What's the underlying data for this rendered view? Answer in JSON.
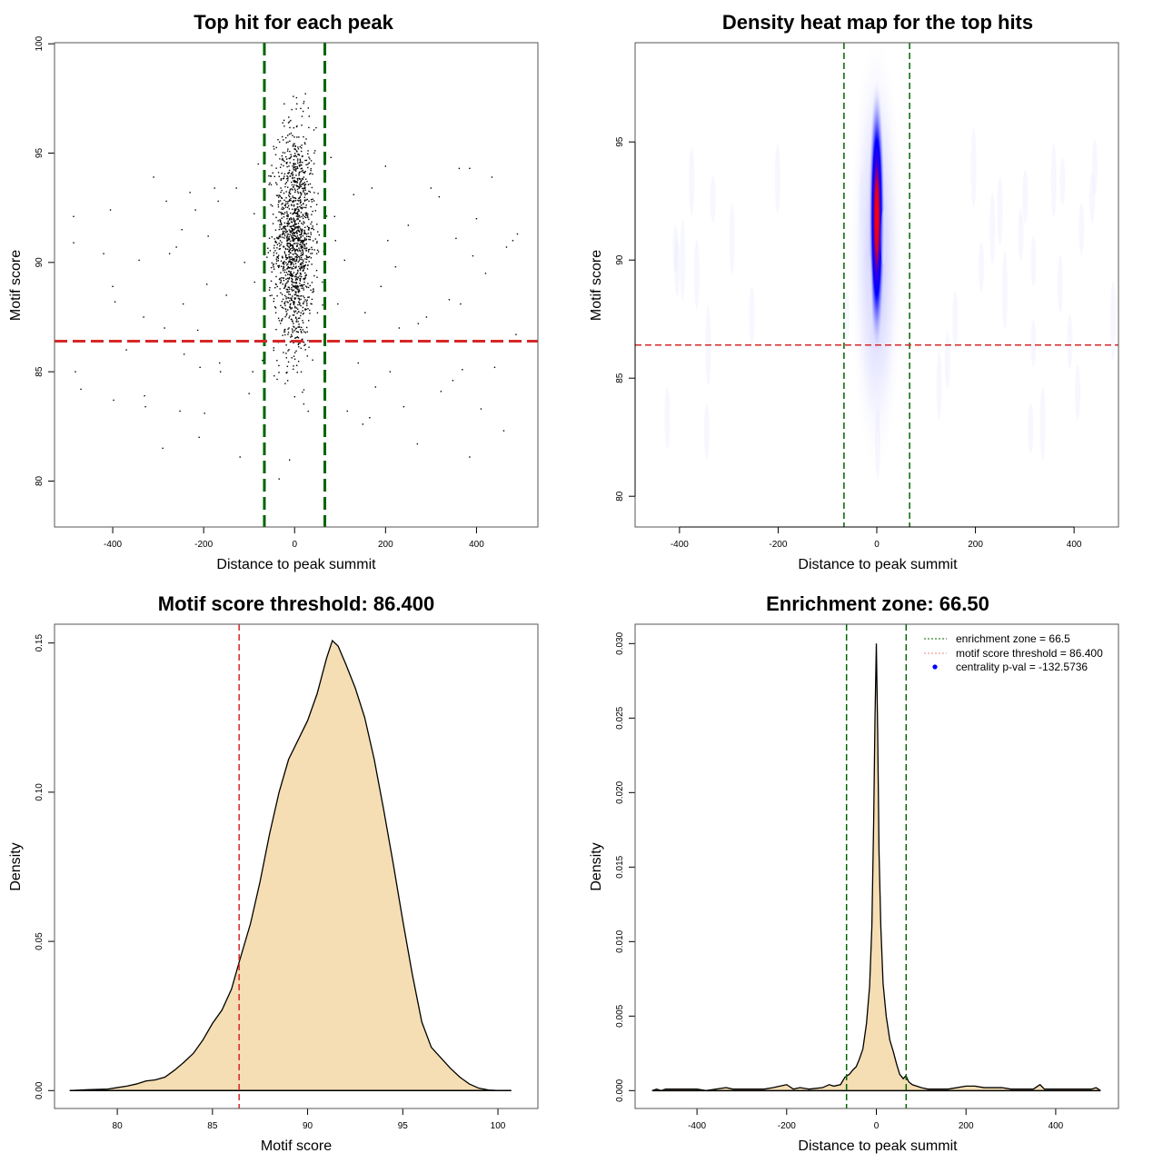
{
  "chart_data": [
    {
      "id": "scatter",
      "type": "scatter",
      "title": "Top hit for each peak",
      "xlabel": "Distance to peak summit",
      "ylabel": "Motif score",
      "xlim": [
        -528,
        535
      ],
      "ylim": [
        77.9,
        100.05
      ],
      "xticks": [
        -400,
        -200,
        0,
        200,
        400
      ],
      "yticks": [
        80,
        85,
        90,
        95,
        100
      ],
      "point_color": "#000000",
      "center_cluster": {
        "x_mean": 0,
        "x_sd": 22,
        "y_mean": 91,
        "y_sd": 2.6,
        "n": 1400
      },
      "outliers_approx": [
        [
          -486,
          92.1
        ],
        [
          -486,
          90.9
        ],
        [
          -470,
          84.2
        ],
        [
          -482,
          85.0
        ],
        [
          -420,
          90.4
        ],
        [
          -405,
          92.4
        ],
        [
          -400,
          88.9
        ],
        [
          -395,
          88.2
        ],
        [
          -398,
          83.7
        ],
        [
          -370,
          86.0
        ],
        [
          -342,
          90.1
        ],
        [
          -332,
          87.5
        ],
        [
          -330,
          83.9
        ],
        [
          -328,
          83.4
        ],
        [
          -310,
          93.9
        ],
        [
          -290,
          81.5
        ],
        [
          -286,
          87.0
        ],
        [
          -282,
          92.8
        ],
        [
          -275,
          90.4
        ],
        [
          -260,
          90.7
        ],
        [
          -252,
          83.2
        ],
        [
          -248,
          91.5
        ],
        [
          -245,
          88.1
        ],
        [
          -243,
          85.8
        ],
        [
          -230,
          93.2
        ],
        [
          -218,
          92.4
        ],
        [
          -213,
          86.9
        ],
        [
          -210,
          82.0
        ],
        [
          -208,
          85.2
        ],
        [
          -198,
          83.1
        ],
        [
          -193,
          89.0
        ],
        [
          -190,
          91.2
        ],
        [
          -176,
          93.4
        ],
        [
          -168,
          92.8
        ],
        [
          -165,
          85.4
        ],
        [
          -163,
          85.0
        ],
        [
          -150,
          88.5
        ],
        [
          -128,
          93.4
        ],
        [
          -120,
          81.1
        ],
        [
          -110,
          90.0
        ],
        [
          -100,
          84.0
        ],
        [
          -92,
          85.0
        ],
        [
          -88,
          89.1
        ],
        [
          -80,
          94.5
        ],
        [
          -75,
          86.4
        ],
        [
          80,
          94.8
        ],
        [
          88,
          92.1
        ],
        [
          90,
          91.0
        ],
        [
          95,
          88.1
        ],
        [
          110,
          90.1
        ],
        [
          116,
          83.2
        ],
        [
          130,
          93.1
        ],
        [
          140,
          85.4
        ],
        [
          150,
          82.6
        ],
        [
          155,
          87.7
        ],
        [
          165,
          82.9
        ],
        [
          170,
          93.4
        ],
        [
          178,
          84.3
        ],
        [
          190,
          88.9
        ],
        [
          200,
          94.4
        ],
        [
          205,
          91.0
        ],
        [
          210,
          85.0
        ],
        [
          222,
          89.8
        ],
        [
          230,
          87.0
        ],
        [
          240,
          83.4
        ],
        [
          250,
          91.7
        ],
        [
          270,
          81.7
        ],
        [
          272,
          87.2
        ],
        [
          290,
          87.5
        ],
        [
          300,
          93.4
        ],
        [
          318,
          93.0
        ],
        [
          322,
          84.1
        ],
        [
          340,
          88.3
        ],
        [
          348,
          84.6
        ],
        [
          355,
          91.1
        ],
        [
          362,
          94.3
        ],
        [
          365,
          88.1
        ],
        [
          369,
          85.1
        ],
        [
          385,
          94.3
        ],
        [
          385,
          81.1
        ],
        [
          392,
          90.3
        ],
        [
          400,
          92.0
        ],
        [
          410,
          83.3
        ],
        [
          420,
          89.5
        ],
        [
          434,
          93.9
        ],
        [
          440,
          85.2
        ],
        [
          446,
          86.4
        ],
        [
          460,
          82.3
        ],
        [
          466,
          90.7
        ],
        [
          480,
          91.0
        ],
        [
          487,
          86.7
        ],
        [
          490,
          91.3
        ]
      ],
      "hlines": [
        {
          "y": 86.4,
          "color": "#d62728",
          "style": "dashed"
        }
      ],
      "vlines": [
        {
          "x": -66.5,
          "color": "#006400",
          "style": "dashed"
        },
        {
          "x": 66.5,
          "color": "#006400",
          "style": "dashed"
        }
      ]
    },
    {
      "id": "heatmap",
      "type": "heatmap",
      "title": "Density heat map for the top hits",
      "xlabel": "Distance to peak summit",
      "ylabel": "Motif score",
      "xlim": [
        -490,
        490
      ],
      "ylim": [
        78.7,
        99.2
      ],
      "xticks": [
        -400,
        -200,
        0,
        200,
        400
      ],
      "yticks": [
        80,
        85,
        90,
        95
      ],
      "colormap": [
        "#ffffff",
        "#0000ff",
        "#ff0000"
      ],
      "peak": {
        "x": 0,
        "y": 91.8,
        "x_sd": 7,
        "y_sd": 2.3
      },
      "hlines": [
        {
          "y": 86.4,
          "color": "#d62728",
          "style": "dashed"
        }
      ],
      "vlines": [
        {
          "x": -66.5,
          "color": "#006400",
          "style": "dashed"
        },
        {
          "x": 66.5,
          "color": "#006400",
          "style": "dashed"
        }
      ]
    },
    {
      "id": "score-density",
      "type": "area",
      "title": "Motif score threshold: 86.400",
      "xlabel": "Motif score",
      "ylabel": "Density",
      "xlim": [
        76.7,
        102.1
      ],
      "ylim": [
        -0.006,
        0.1563
      ],
      "xticks": [
        80,
        85,
        90,
        95,
        100
      ],
      "yticks": [
        0.0,
        0.05,
        0.1,
        0.15
      ],
      "ytick_labels": [
        "0.00",
        "0.05",
        "0.10",
        "0.15"
      ],
      "fill": "#f5deb3",
      "x": [
        77.5,
        78.5,
        79.5,
        80.5,
        81.0,
        81.5,
        82.0,
        82.5,
        83.0,
        83.5,
        84.0,
        84.5,
        85.0,
        85.5,
        86.0,
        86.4,
        87.0,
        87.5,
        88.0,
        88.5,
        89.0,
        89.5,
        90.0,
        90.5,
        91.0,
        91.3,
        91.6,
        92.0,
        92.5,
        93.0,
        93.5,
        94.0,
        94.5,
        95.0,
        95.5,
        96.0,
        96.5,
        97.0,
        97.5,
        98.0,
        98.5,
        99.0,
        99.5,
        100.0,
        100.7
      ],
      "y": [
        0.0,
        0.0003,
        0.0005,
        0.0015,
        0.0022,
        0.0032,
        0.0036,
        0.0045,
        0.0068,
        0.0095,
        0.0125,
        0.017,
        0.0225,
        0.027,
        0.034,
        0.043,
        0.056,
        0.07,
        0.086,
        0.1,
        0.111,
        0.1175,
        0.124,
        0.133,
        0.145,
        0.1508,
        0.149,
        0.143,
        0.135,
        0.125,
        0.111,
        0.094,
        0.076,
        0.057,
        0.039,
        0.023,
        0.0145,
        0.011,
        0.0075,
        0.0045,
        0.0022,
        0.0008,
        0.0002,
        0.0,
        0.0
      ],
      "vlines": [
        {
          "x": 86.4,
          "color": "#d62728",
          "style": "dashed"
        }
      ]
    },
    {
      "id": "distance-density",
      "type": "area",
      "title": "Enrichment zone: 66.50",
      "xlabel": "Distance to peak summit",
      "ylabel": "Density",
      "xlim": [
        -538,
        540
      ],
      "ylim": [
        -0.0012,
        0.0313
      ],
      "xticks": [
        -400,
        -200,
        0,
        200,
        400
      ],
      "yticks": [
        0.0,
        0.005,
        0.01,
        0.015,
        0.02,
        0.025,
        0.03
      ],
      "ytick_labels": [
        "0.000",
        "0.005",
        "0.010",
        "0.015",
        "0.020",
        "0.025",
        "0.030"
      ],
      "fill": "#f5deb3",
      "x": [
        -500,
        -490,
        -480,
        -470,
        -420,
        -400,
        -380,
        -335,
        -320,
        -290,
        -250,
        -230,
        -215,
        -200,
        -185,
        -170,
        -150,
        -120,
        -105,
        -95,
        -80,
        -70,
        -60,
        -52,
        -45,
        -38,
        -30,
        -22,
        -15,
        -10,
        -6,
        -3,
        0,
        3,
        6,
        10,
        15,
        22,
        30,
        38,
        45,
        52,
        60,
        66,
        72,
        80,
        90,
        100,
        115,
        130,
        160,
        200,
        220,
        240,
        260,
        280,
        300,
        330,
        350,
        365,
        375,
        400,
        450,
        480,
        490,
        500
      ],
      "y": [
        0.0,
        0.0001,
        0.0,
        0.0001,
        0.0001,
        0.0001,
        0.0,
        0.0002,
        0.0001,
        0.0001,
        0.0001,
        0.0002,
        0.0003,
        0.0004,
        0.0001,
        0.0002,
        0.0001,
        0.0002,
        0.0004,
        0.0003,
        0.0004,
        0.0009,
        0.0011,
        0.0014,
        0.0016,
        0.0021,
        0.0028,
        0.0045,
        0.007,
        0.011,
        0.018,
        0.025,
        0.03,
        0.024,
        0.016,
        0.011,
        0.0072,
        0.005,
        0.0034,
        0.0026,
        0.0018,
        0.0011,
        0.0008,
        0.001,
        0.0006,
        0.0004,
        0.0003,
        0.0002,
        0.0001,
        0.0001,
        0.0001,
        0.0003,
        0.0003,
        0.0002,
        0.0002,
        0.0002,
        0.0001,
        0.0001,
        0.0001,
        0.0004,
        0.0001,
        0.0001,
        0.0001,
        0.0001,
        0.0002,
        0.0
      ],
      "vlines": [
        {
          "x": -66.5,
          "color": "#006400",
          "style": "dashed"
        },
        {
          "x": 66.5,
          "color": "#006400",
          "style": "dashed"
        }
      ],
      "legend": {
        "position": "top-right",
        "entries": [
          {
            "label": "enrichment zone = 66.5",
            "color": "#006400",
            "symbol": "dotted-line"
          },
          {
            "label": "motif score threshold = 86.400",
            "color": "#f08080",
            "symbol": "dotted-line"
          },
          {
            "label": "centrality p-val = -132.5736",
            "color": "#0000ff",
            "symbol": "dot"
          }
        ]
      }
    }
  ]
}
